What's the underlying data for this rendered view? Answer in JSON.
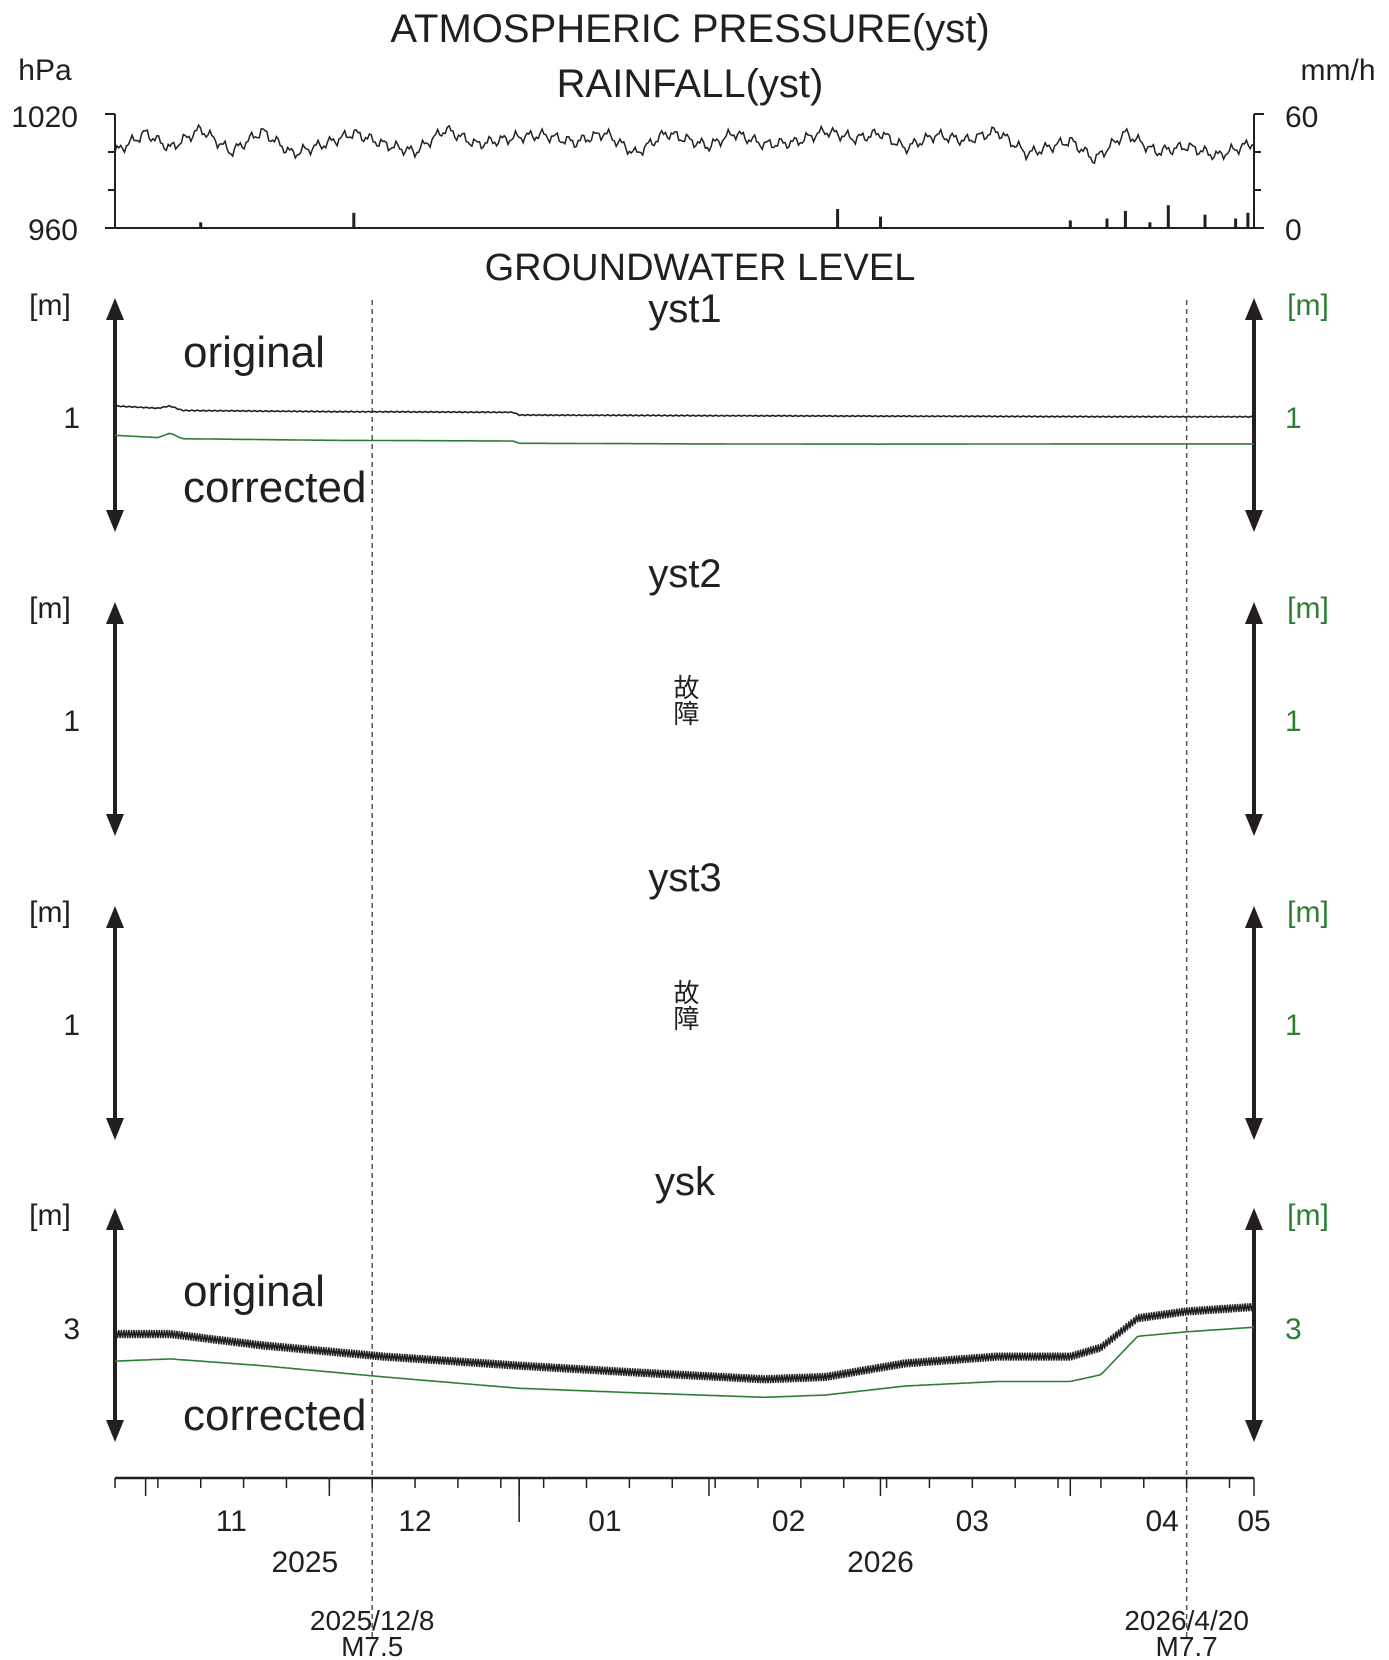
{
  "chart_data": {
    "type": "line",
    "title_lines": [
      "ATMOSPHERIC PRESSURE(yst)",
      "RAINFALL(yst)"
    ],
    "section_title": "GROUNDWATER LEVEL",
    "x_range": [
      "2025-10-27",
      "2026-05-01"
    ],
    "x_month_labels": [
      "11",
      "12",
      "01",
      "02",
      "03",
      "04",
      "05"
    ],
    "x_month_dates": [
      "2025-11-15",
      "2025-12-15",
      "2026-01-15",
      "2026-02-14",
      "2026-03-16",
      "2026-04-16",
      "2026-05-01"
    ],
    "x_years": [
      {
        "label": "2025",
        "date": "2025-11-27"
      },
      {
        "label": "2026",
        "date": "2026-03-01"
      }
    ],
    "events": [
      {
        "date_label": "2025/12/8",
        "magnitude_label": "M7.5",
        "date": "2025-12-08"
      },
      {
        "date_label": "2026/4/20",
        "magnitude_label": "M7.7",
        "date": "2026-04-20"
      }
    ],
    "pressure": {
      "left_unit": "hPa",
      "right_unit": "mm/h",
      "left_ticks": [
        "1020",
        "960"
      ],
      "right_ticks": [
        "60",
        "0"
      ],
      "ylim": [
        960,
        1020
      ],
      "rain_ylim": [
        0,
        60
      ],
      "pressure_series": {
        "x": [
          "2025-10-27",
          "2025-11-01",
          "2025-11-05",
          "2025-11-10",
          "2025-11-15",
          "2025-11-20",
          "2025-11-25",
          "2025-12-01",
          "2025-12-05",
          "2025-12-10",
          "2025-12-15",
          "2025-12-20",
          "2025-12-25",
          "2026-01-01",
          "2026-01-05",
          "2026-01-10",
          "2026-01-15",
          "2026-01-20",
          "2026-01-25",
          "2026-02-01",
          "2026-02-05",
          "2026-02-10",
          "2026-02-15",
          "2026-02-20",
          "2026-02-25",
          "2026-03-01",
          "2026-03-05",
          "2026-03-10",
          "2026-03-15",
          "2026-03-20",
          "2026-03-25",
          "2026-04-01",
          "2026-04-05",
          "2026-04-10",
          "2026-04-15",
          "2026-04-20",
          "2026-04-25",
          "2026-05-01"
        ],
        "values": [
          1000,
          1010,
          1002,
          1012,
          1000,
          1011,
          999,
          1005,
          1010,
          1004,
          1000,
          1012,
          1004,
          1008,
          1009,
          1005,
          1010,
          999,
          1010,
          1003,
          1010,
          1004,
          1005,
          1011,
          1007,
          1010,
          1002,
          1009,
          1006,
          1011,
          999,
          1006,
          996,
          1010,
          1000,
          1003,
          998,
          1005
        ]
      },
      "rain_series": {
        "x": [
          "2025-11-10",
          "2025-12-05",
          "2026-02-22",
          "2026-03-01",
          "2026-04-01",
          "2026-04-07",
          "2026-04-10",
          "2026-04-14",
          "2026-04-17",
          "2026-04-23",
          "2026-04-28",
          "2026-04-30"
        ],
        "values": [
          3,
          8,
          10,
          6,
          4,
          5,
          9,
          3,
          12,
          7,
          5,
          8
        ]
      }
    },
    "panels": [
      {
        "station": "yst1",
        "left_unit": "[m]",
        "right_unit": "[m]",
        "left_tick": "1",
        "right_tick": "1",
        "original_label": "original",
        "corrected_label": "corrected",
        "ylim": [
          0.5,
          1.5
        ],
        "series": [
          {
            "name": "original",
            "x": [
              "2025-10-27",
              "2025-11-03",
              "2025-11-05",
              "2025-11-07",
              "2025-12-01",
              "2025-12-31",
              "2026-01-01",
              "2026-02-01",
              "2026-03-01",
              "2026-04-01",
              "2026-05-01"
            ],
            "values": [
              1.04,
              1.03,
              1.04,
              1.02,
              1.015,
              1.012,
              1.0,
              0.997,
              0.995,
              0.993,
              0.992
            ]
          },
          {
            "name": "corrected",
            "x": [
              "2025-10-27",
              "2025-11-03",
              "2025-11-05",
              "2025-11-07",
              "2025-12-01",
              "2025-12-31",
              "2026-01-01",
              "2026-02-01",
              "2026-03-01",
              "2026-04-01",
              "2026-05-01"
            ],
            "values": [
              0.91,
              0.9,
              0.92,
              0.895,
              0.888,
              0.885,
              0.875,
              0.872,
              0.871,
              0.872,
              0.872
            ]
          }
        ]
      },
      {
        "station": "yst2",
        "left_unit": "[m]",
        "right_unit": "[m]",
        "left_tick": "1",
        "right_tick": "1",
        "status_text": "故障",
        "series": []
      },
      {
        "station": "yst3",
        "left_unit": "[m]",
        "right_unit": "[m]",
        "left_tick": "1",
        "right_tick": "1",
        "status_text": "故障",
        "series": []
      },
      {
        "station": "ysk",
        "left_unit": "[m]",
        "right_unit": "[m]",
        "left_tick": "3",
        "right_tick": "3",
        "original_label": "original",
        "corrected_label": "corrected",
        "ylim": [
          2.5,
          3.5
        ],
        "series": [
          {
            "name": "original",
            "x": [
              "2025-10-27",
              "2025-11-05",
              "2025-11-20",
              "2025-12-10",
              "2026-01-01",
              "2026-01-20",
              "2026-02-10",
              "2026-02-20",
              "2026-03-05",
              "2026-03-20",
              "2026-04-01",
              "2026-04-06",
              "2026-04-12",
              "2026-04-20",
              "2026-05-01"
            ],
            "values": [
              2.96,
              2.96,
              2.91,
              2.86,
              2.82,
              2.79,
              2.76,
              2.77,
              2.83,
              2.86,
              2.86,
              2.9,
              3.03,
              3.06,
              3.08
            ]
          },
          {
            "name": "corrected",
            "x": [
              "2025-10-27",
              "2025-11-05",
              "2025-11-20",
              "2025-12-10",
              "2026-01-01",
              "2026-01-20",
              "2026-02-10",
              "2026-02-20",
              "2026-03-05",
              "2026-03-20",
              "2026-04-01",
              "2026-04-06",
              "2026-04-12",
              "2026-04-20",
              "2026-05-01"
            ],
            "values": [
              2.84,
              2.85,
              2.82,
              2.77,
              2.72,
              2.7,
              2.68,
              2.69,
              2.73,
              2.75,
              2.75,
              2.78,
              2.95,
              2.97,
              2.99
            ]
          }
        ]
      }
    ]
  }
}
